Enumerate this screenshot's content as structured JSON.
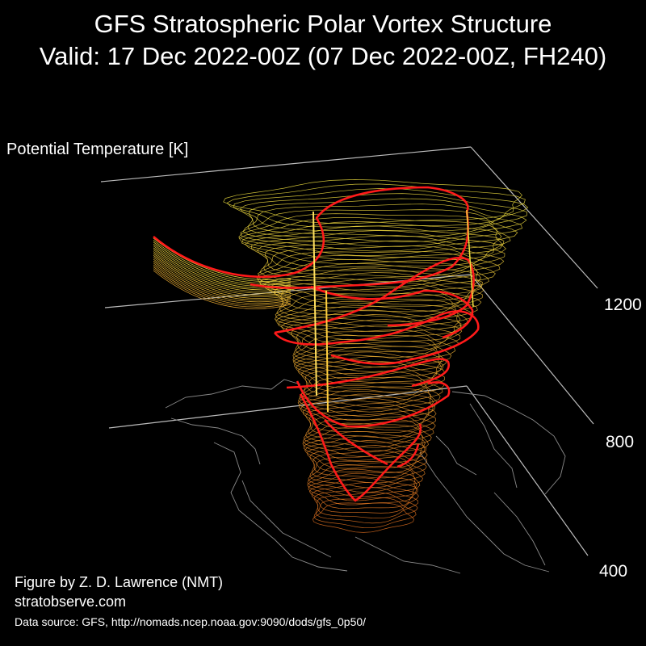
{
  "title_line1": "GFS Stratospheric Polar Vortex Structure",
  "title_line2": "Valid: 17 Dec 2022-00Z  (07 Dec 2022-00Z, FH240)",
  "axis": {
    "label": "Potential Temperature [K]",
    "ticks": [
      "1200",
      "800",
      "400"
    ]
  },
  "credits": {
    "author": "Figure by Z. D. Lawrence (NMT)",
    "website": "stratobserve.com",
    "source": "Data source: GFS, http://nomads.ncep.noaa.gov:9090/dods/gfs_0p50/"
  },
  "colors": {
    "background": "#000000",
    "axes": "#bbbbbb",
    "coastline": "#8a8a8a",
    "contour_low": "#e07020",
    "contour_high": "#f0e040",
    "highlight": "#ff1a1a"
  }
}
